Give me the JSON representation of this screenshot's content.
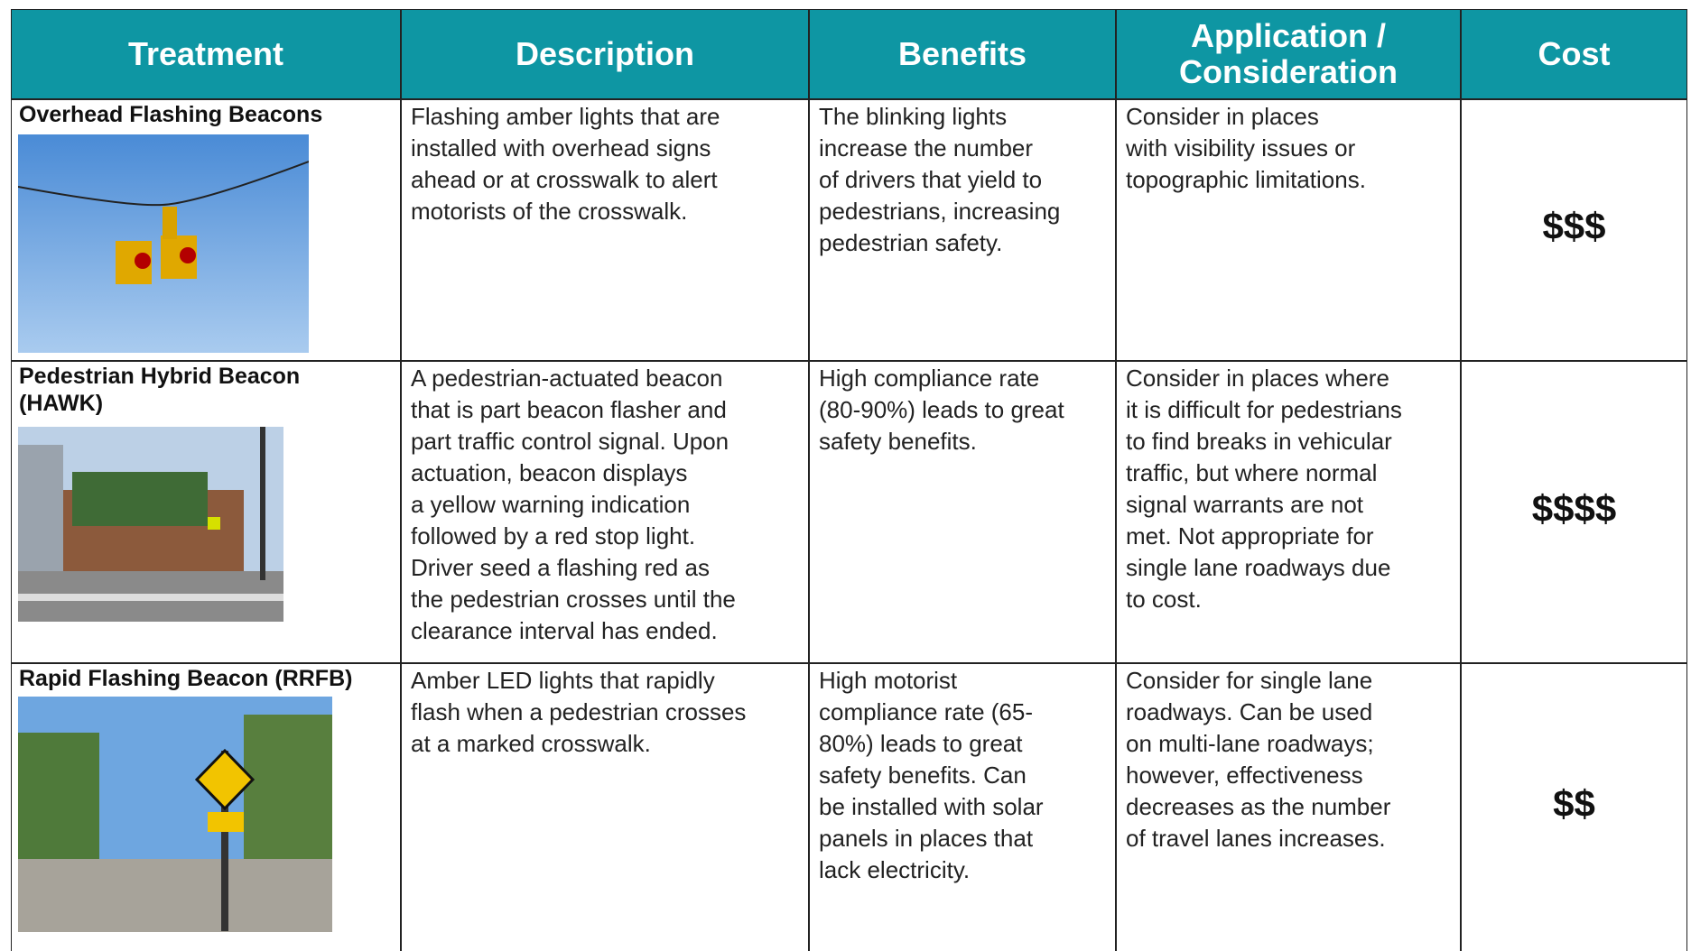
{
  "header": {
    "columns": [
      "Treatment",
      "Description",
      "Benefits",
      "Application / Consideration",
      "Cost"
    ]
  },
  "table": {
    "rows": [
      {
        "treatment": [
          "Overhead Flashing Beacons"
        ],
        "description": [
          "Flashing amber lights that are",
          "installed with overhead signs",
          "ahead or at crosswalk to alert",
          "motorists of the crosswalk."
        ],
        "benefits": [
          "The blinking lights",
          "increase the number",
          "of drivers that yield to",
          "pedestrians, increasing",
          "pedestrian safety."
        ],
        "application": [
          "Consider in places",
          "with visibility issues or",
          "topographic limitations."
        ],
        "cost": "$$$"
      },
      {
        "treatment": [
          "Pedestrian Hybrid Beacon",
          "(HAWK)"
        ],
        "description": [
          "A pedestrian-actuated beacon",
          "that is part beacon flasher and",
          "part traffic control signal.  Upon",
          "actuation, beacon displays",
          "a yellow warning indication",
          "followed by a red stop light.",
          "Driver seed a flashing red as",
          "the pedestrian crosses until the",
          "clearance interval has ended."
        ],
        "benefits": [
          "High compliance rate",
          "(80-90%) leads to great",
          "safety benefits."
        ],
        "application": [
          "Consider in places where",
          "it is difficult for pedestrians",
          "to find breaks in vehicular",
          "traffic, but where normal",
          "signal warrants are not",
          "met.  Not appropriate for",
          "single lane roadways due",
          "to cost."
        ],
        "cost": "$$$$"
      },
      {
        "treatment": [
          "Rapid Flashing Beacon (RRFB)"
        ],
        "description": [
          "Amber LED lights that rapidly",
          "flash when a pedestrian crosses",
          "at a marked crosswalk."
        ],
        "benefits": [
          "High motorist",
          "compliance rate (65-",
          "80%) leads to great",
          "safety benefits.  Can",
          "be installed with solar",
          "panels in places that",
          "lack electricity."
        ],
        "application": [
          "Consider for single lane",
          "roadways.  Can be used",
          "on multi-lane roadways;",
          "however, effectiveness",
          "decreases as the number",
          "of travel lanes increases."
        ],
        "cost": "$$"
      }
    ]
  }
}
